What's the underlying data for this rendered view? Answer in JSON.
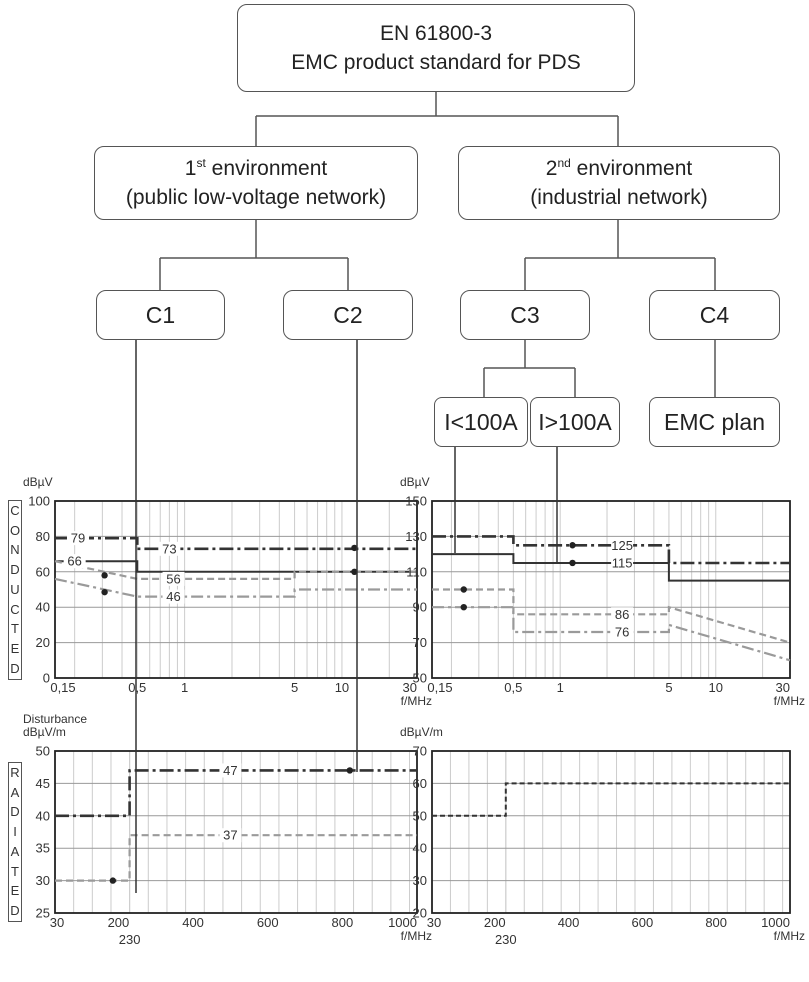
{
  "standard": {
    "line1": "EN 61800-3",
    "line2": "EMC product standard for PDS"
  },
  "env1": {
    "ordinal": "1",
    "sup": "st",
    "rest": " environment",
    "line2": "(public low-voltage network)"
  },
  "env2": {
    "ordinal": "2",
    "sup": "nd",
    "rest": " environment",
    "line2": "(industrial network)"
  },
  "categories": {
    "c1": "C1",
    "c2": "C2",
    "c3": "C3",
    "c4": "C4"
  },
  "subcategories": {
    "low": "I<100A",
    "high": "I>100A",
    "plan": "EMC plan"
  },
  "side_labels": {
    "conducted": [
      "C",
      "O",
      "N",
      "D",
      "U",
      "C",
      "T",
      "E",
      "D"
    ],
    "radiated": [
      "R",
      "A",
      "D",
      "I",
      "A",
      "T",
      "E",
      "D"
    ]
  },
  "colors": {
    "line": "#555555",
    "dark": "#333333",
    "light": "#9a9a9a",
    "medium": "#777777",
    "grid": "#cccccc"
  },
  "chart_data": [
    {
      "type": "line",
      "id": "conducted-1st",
      "ylabel": "dBµV",
      "xlabel": "f/MHz",
      "xscale": "log",
      "xlim": [
        0.15,
        30
      ],
      "ylim": [
        0,
        100
      ],
      "yticks": [
        0,
        20,
        40,
        60,
        80,
        100
      ],
      "xticks": [
        {
          "v": 0.15,
          "label": "0,15"
        },
        {
          "v": 0.5,
          "label": "0,5"
        },
        {
          "v": 1,
          "label": "1"
        },
        {
          "v": 5,
          "label": "5"
        },
        {
          "v": 10,
          "label": "10"
        },
        {
          "v": 30,
          "label": "30"
        }
      ],
      "series": [
        {
          "style": "dashdot-dark",
          "x": [
            0.15,
            0.5,
            0.5,
            30
          ],
          "y": [
            79,
            79,
            73,
            73
          ]
        },
        {
          "style": "solid-dark",
          "x": [
            0.15,
            0.5,
            0.5,
            30
          ],
          "y": [
            66,
            66,
            60,
            60
          ]
        },
        {
          "style": "dash-light",
          "x": [
            0.15,
            0.5,
            0.5,
            5,
            5,
            30
          ],
          "y": [
            66,
            56,
            56,
            56,
            60,
            60
          ]
        },
        {
          "style": "dashdot-light",
          "x": [
            0.15,
            0.5,
            0.5,
            5,
            5,
            30
          ],
          "y": [
            56,
            46,
            46,
            46,
            50,
            50
          ]
        }
      ],
      "annotations": [
        {
          "x": 0.21,
          "y": 79,
          "text": "79"
        },
        {
          "x": 0.8,
          "y": 73,
          "text": "73"
        },
        {
          "x": 0.2,
          "y": 66,
          "text": "66"
        },
        {
          "x": 0.85,
          "y": 56,
          "text": "56"
        },
        {
          "x": 0.85,
          "y": 46,
          "text": "46"
        }
      ],
      "dots": [
        {
          "x": 0.31,
          "y": 58
        },
        {
          "x": 0.31,
          "y": 48.5
        },
        {
          "x": 12,
          "y": 73.5
        },
        {
          "x": 12,
          "y": 60
        }
      ]
    },
    {
      "type": "line",
      "id": "conducted-2nd",
      "ylabel": "dBµV",
      "xlabel": "f/MHz",
      "xscale": "log",
      "xlim": [
        0.15,
        30
      ],
      "ylim": [
        50,
        150
      ],
      "yticks": [
        50,
        70,
        90,
        110,
        130,
        150
      ],
      "xticks": [
        {
          "v": 0.15,
          "label": "0,15"
        },
        {
          "v": 0.5,
          "label": "0,5"
        },
        {
          "v": 1,
          "label": "1"
        },
        {
          "v": 5,
          "label": "5"
        },
        {
          "v": 10,
          "label": "10"
        },
        {
          "v": 30,
          "label": "30"
        }
      ],
      "series": [
        {
          "style": "dashdot-dark",
          "x": [
            0.15,
            0.5,
            0.5,
            5,
            5,
            30
          ],
          "y": [
            130,
            130,
            125,
            125,
            115,
            115
          ]
        },
        {
          "style": "solid-dark",
          "x": [
            0.15,
            0.5,
            0.5,
            5,
            5,
            30
          ],
          "y": [
            120,
            120,
            115,
            115,
            105,
            105
          ]
        },
        {
          "style": "dash-light",
          "x": [
            0.15,
            0.5,
            0.5,
            5,
            5,
            30
          ],
          "y": [
            100,
            100,
            86,
            86,
            90,
            70
          ]
        },
        {
          "style": "dashdot-light",
          "x": [
            0.15,
            0.5,
            0.5,
            5,
            5,
            30
          ],
          "y": [
            90,
            90,
            76,
            76,
            80,
            60
          ]
        }
      ],
      "annotations": [
        {
          "x": 2.5,
          "y": 125,
          "text": "125"
        },
        {
          "x": 2.5,
          "y": 115,
          "text": "115"
        },
        {
          "x": 2.5,
          "y": 86,
          "text": "86"
        },
        {
          "x": 2.5,
          "y": 76,
          "text": "76"
        }
      ],
      "dots": [
        {
          "x": 0.24,
          "y": 100
        },
        {
          "x": 0.24,
          "y": 90
        },
        {
          "x": 1.2,
          "y": 125
        },
        {
          "x": 1.2,
          "y": 115
        }
      ]
    },
    {
      "type": "line",
      "id": "radiated-1st",
      "title": "Disturbance",
      "ylabel": "dBµV/m",
      "xlabel": "f/MHz",
      "xscale": "linear",
      "xlim": [
        30,
        1000
      ],
      "ylim": [
        25,
        50
      ],
      "yticks": [
        25,
        30,
        35,
        40,
        45,
        50
      ],
      "xticks": [
        {
          "v": 30,
          "label": "30"
        },
        {
          "v": 200,
          "label": "200"
        },
        {
          "v": 400,
          "label": "400"
        },
        {
          "v": 600,
          "label": "600"
        },
        {
          "v": 800,
          "label": "800"
        },
        {
          "v": 1000,
          "label": "1000"
        }
      ],
      "extra_xtick": {
        "v": 230,
        "label": "230"
      },
      "series": [
        {
          "style": "dashdot-dark",
          "x": [
            30,
            230,
            230,
            1000
          ],
          "y": [
            40,
            40,
            47,
            47
          ]
        },
        {
          "style": "dash-light",
          "x": [
            30,
            230,
            230,
            1000
          ],
          "y": [
            30,
            30,
            37,
            37
          ]
        }
      ],
      "annotations": [
        {
          "x": 500,
          "y": 47,
          "text": "47"
        },
        {
          "x": 500,
          "y": 37,
          "text": "37"
        }
      ],
      "dots": [
        {
          "x": 185,
          "y": 30
        },
        {
          "x": 820,
          "y": 47
        }
      ]
    },
    {
      "type": "line",
      "id": "radiated-2nd",
      "ylabel": "dBµV/m",
      "xlabel": "f/MHz",
      "xscale": "linear",
      "xlim": [
        30,
        1000
      ],
      "ylim": [
        20,
        70
      ],
      "yticks": [
        20,
        30,
        40,
        50,
        60,
        70
      ],
      "xticks": [
        {
          "v": 30,
          "label": "30"
        },
        {
          "v": 200,
          "label": "200"
        },
        {
          "v": 400,
          "label": "400"
        },
        {
          "v": 600,
          "label": "600"
        },
        {
          "v": 800,
          "label": "800"
        },
        {
          "v": 1000,
          "label": "1000"
        }
      ],
      "extra_xtick": {
        "v": 230,
        "label": "230"
      },
      "series": [
        {
          "style": "dash-dark",
          "x": [
            30,
            230,
            230,
            1000
          ],
          "y": [
            50,
            50,
            60,
            60
          ]
        }
      ],
      "annotations": [],
      "dots": []
    }
  ]
}
